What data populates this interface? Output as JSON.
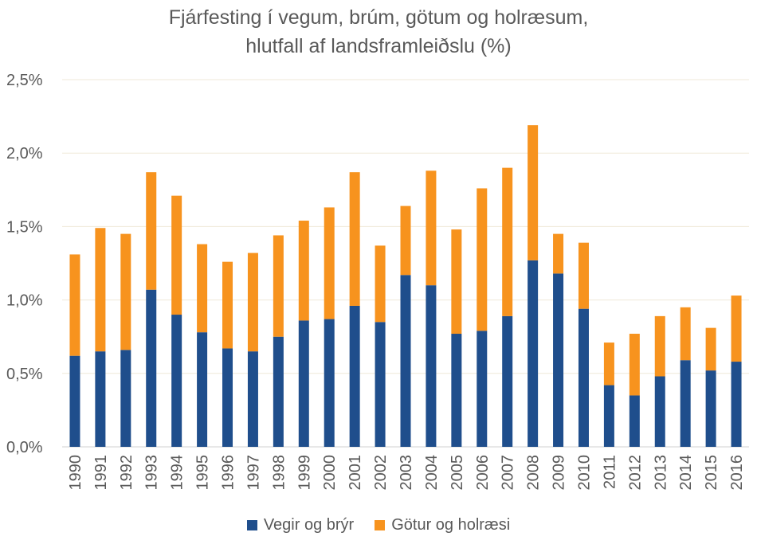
{
  "chart_data": {
    "type": "bar",
    "stacked": true,
    "title": "Fjárfesting í vegum, brúm, götum og holræsum,",
    "subtitle": "hlutfall af landsframleiðslu (%)",
    "xlabel": "",
    "ylabel": "",
    "ylim": [
      0,
      2.5
    ],
    "yticks": [
      "0,0%",
      "0,5%",
      "1,0%",
      "1,5%",
      "2,0%",
      "2,5%"
    ],
    "grid": true,
    "legend_position": "bottom",
    "categories": [
      "1990",
      "1991",
      "1992",
      "1993",
      "1994",
      "1995",
      "1996",
      "1997",
      "1998",
      "1999",
      "2000",
      "2001",
      "2002",
      "2003",
      "2004",
      "2005",
      "2006",
      "2007",
      "2008",
      "2009",
      "2010",
      "2011",
      "2012",
      "2013",
      "2014",
      "2015",
      "2016"
    ],
    "series": [
      {
        "name": "Vegir og brýr",
        "color": "#1f4e8c",
        "values": [
          0.62,
          0.65,
          0.66,
          1.07,
          0.9,
          0.78,
          0.67,
          0.65,
          0.75,
          0.86,
          0.87,
          0.96,
          0.85,
          1.17,
          1.1,
          0.77,
          0.79,
          0.89,
          1.27,
          1.18,
          0.94,
          0.42,
          0.35,
          0.48,
          0.59,
          0.52,
          0.58
        ]
      },
      {
        "name": "Götur og holræsi",
        "color": "#f7931e",
        "values": [
          0.69,
          0.84,
          0.79,
          0.8,
          0.81,
          0.6,
          0.59,
          0.67,
          0.69,
          0.68,
          0.76,
          0.91,
          0.52,
          0.47,
          0.78,
          0.71,
          0.97,
          1.01,
          0.92,
          0.27,
          0.45,
          0.29,
          0.42,
          0.41,
          0.36,
          0.29,
          0.45
        ]
      }
    ]
  }
}
